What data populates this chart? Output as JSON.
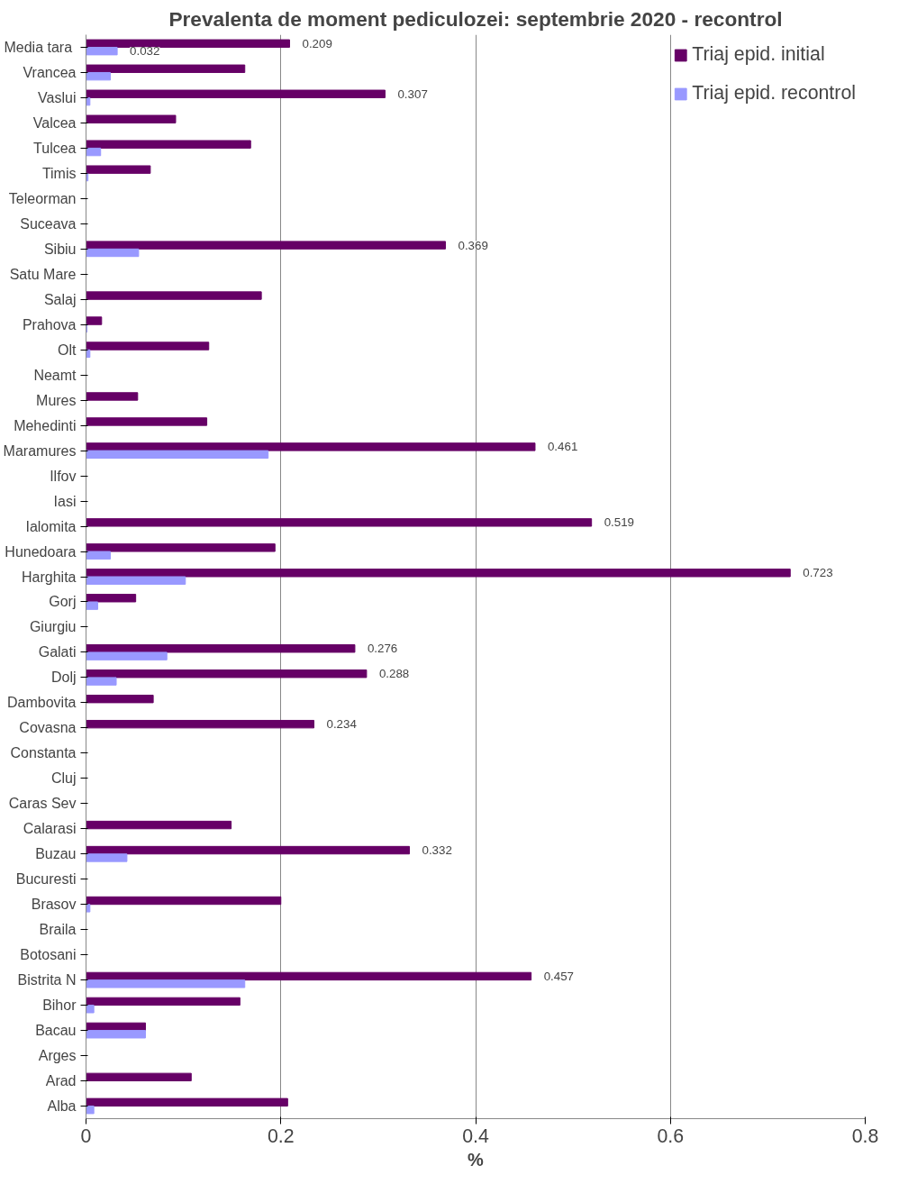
{
  "chart_data": {
    "type": "bar",
    "orientation": "horizontal",
    "title": "Prevalenta de moment pediculozei: septembrie 2020 - recontrol",
    "xlabel": "%",
    "categories": [
      "Media  tara",
      "Vrancea",
      "Vaslui",
      "Valcea",
      "Tulcea",
      "Timis",
      "Teleorman",
      "Suceava",
      "Sibiu",
      "Satu Mare",
      "Salaj",
      "Prahova",
      "Olt",
      "Neamt",
      "Mures",
      "Mehedinti",
      "Maramures",
      "Ilfov",
      "Iasi",
      "Ialomita",
      "Hunedoara",
      "Harghita",
      "Gorj",
      "Giurgiu",
      "Galati",
      "Dolj",
      "Dambovita",
      "Covasna",
      "Constanta",
      "Cluj",
      "Caras Sev",
      "Calarasi",
      "Buzau",
      "Bucuresti",
      "Brasov",
      "Braila",
      "Botosani",
      "Bistrita N",
      "Bihor",
      "Bacau",
      "Arges",
      "Arad",
      "Alba"
    ],
    "series": [
      {
        "name": "Triaj epid. initial",
        "color": "#660066",
        "values": [
          0.209,
          0.163,
          0.307,
          0.092,
          0.169,
          0.066,
          0,
          0,
          0.369,
          0,
          0.18,
          0.016,
          0.126,
          0,
          0.053,
          0.124,
          0.461,
          0,
          0,
          0.519,
          0.194,
          0.723,
          0.051,
          0,
          0.276,
          0.288,
          0.069,
          0.234,
          0,
          0,
          0,
          0.149,
          0.332,
          0,
          0.2,
          0,
          0,
          0.457,
          0.158,
          0.061,
          0,
          0.108,
          0.207
        ],
        "value_labels": [
          "0.209",
          null,
          "0.307",
          null,
          null,
          null,
          null,
          null,
          "0.369",
          null,
          null,
          null,
          null,
          null,
          null,
          null,
          "0.461",
          null,
          null,
          "0.519",
          null,
          "0.723",
          null,
          null,
          "0.276",
          "0.288",
          null,
          "0.234",
          null,
          null,
          null,
          null,
          "0.332",
          null,
          null,
          null,
          null,
          "0.457",
          null,
          null,
          null,
          null,
          null
        ]
      },
      {
        "name": "Triaj epid. recontrol",
        "color": "#9999ff",
        "values": [
          0.032,
          0.025,
          0.004,
          0,
          0.015,
          0.002,
          0,
          0,
          0.054,
          0,
          0,
          0.001,
          0.004,
          0,
          0,
          0,
          0.187,
          0,
          0,
          0,
          0.025,
          0.102,
          0.012,
          0,
          0.083,
          0.031,
          0,
          0,
          0,
          0,
          0,
          0,
          0.042,
          0,
          0.004,
          0,
          0,
          0.163,
          0.008,
          0.061,
          0,
          0,
          0.008
        ],
        "value_labels": [
          "0.032",
          null,
          null,
          null,
          null,
          null,
          null,
          null,
          null,
          null,
          null,
          null,
          null,
          null,
          null,
          null,
          null,
          null,
          null,
          null,
          null,
          null,
          null,
          null,
          null,
          null,
          null,
          null,
          null,
          null,
          null,
          null,
          null,
          null,
          null,
          null,
          null,
          null,
          null,
          null,
          null,
          null,
          null
        ]
      }
    ],
    "xlim": [
      0,
      0.8
    ],
    "xticks": [
      0,
      0.2,
      0.4,
      0.6,
      0.8
    ],
    "grid": "x",
    "legend": "top right"
  }
}
